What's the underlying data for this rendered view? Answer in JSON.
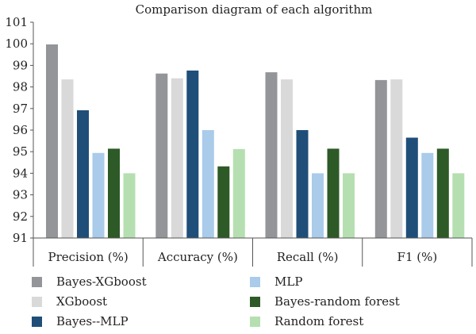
{
  "chart_data": {
    "type": "bar",
    "title": "Comparison diagram of each algorithm",
    "xlabel": "",
    "ylabel": "",
    "ylim": [
      91,
      101
    ],
    "yticks": [
      91,
      92,
      93,
      94,
      95,
      96,
      97,
      98,
      99,
      100,
      101
    ],
    "grid": false,
    "legend_position": "bottom",
    "categories": [
      "Precision (%)",
      "Accuracy (%)",
      "Recall (%)",
      "F1 (%)"
    ],
    "series": [
      {
        "name": "Bayes-XGboost",
        "color": "#939598",
        "values": [
          99.97,
          98.62,
          98.68,
          98.32
        ]
      },
      {
        "name": "XGboost",
        "color": "#d9d9d9",
        "values": [
          98.35,
          98.4,
          98.35,
          98.35
        ]
      },
      {
        "name": "Bayes--MLP",
        "color": "#1f4e79",
        "values": [
          96.92,
          98.76,
          96.0,
          95.65
        ]
      },
      {
        "name": "MLP",
        "color": "#aacbea",
        "values": [
          94.94,
          96.0,
          94.0,
          94.94
        ]
      },
      {
        "name": "Bayes-random forest",
        "color": "#2d5a27",
        "values": [
          95.14,
          94.32,
          95.14,
          95.14
        ]
      },
      {
        "name": "Random forest",
        "color": "#b5dfb0",
        "values": [
          94.0,
          95.12,
          94.0,
          94.0
        ]
      }
    ]
  }
}
